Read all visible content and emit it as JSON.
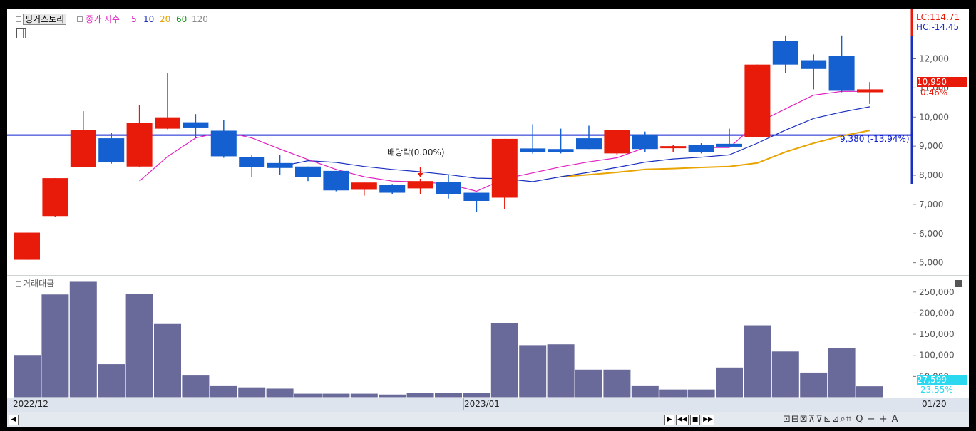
{
  "header": {
    "stock_name": "핑거스토리",
    "ma_prefix": "종가 지수",
    "ma_periods": [
      {
        "label": "5",
        "color": "#e020c0"
      },
      {
        "label": "10",
        "color": "#1a2fbf"
      },
      {
        "label": "20",
        "color": "#e8a400"
      },
      {
        "label": "60",
        "color": "#1a9a1a"
      },
      {
        "label": "120",
        "color": "#888888"
      }
    ],
    "lc_label": "LC:114.71",
    "hc_label": "HC:-14.45"
  },
  "colors": {
    "up": "#e81a0a",
    "down": "#1560d0",
    "volume": "#6a6a9a",
    "hline": "#1020d0",
    "current_price_bg": "#e81a0a",
    "current_volume_bg": "#2ad8f0"
  },
  "price_panel": {
    "current_price": "10,950",
    "current_change": "0.46%",
    "hline_label": "9,380 (-13.94%)",
    "dividend_label": "배당락(0.00%)"
  },
  "volume_panel": {
    "title": "거래대금",
    "current_value": "27,599",
    "current_pct": "23.55%"
  },
  "x_axis": {
    "labels": [
      "2022/12",
      "2023/01",
      "01/20"
    ]
  },
  "toolbar": {
    "scroll_left": "◀",
    "play": "▶",
    "rewind": "◀◀",
    "stop": "■",
    "forward": "▶▶",
    "icons": "⊡⊟⊠⊼⊽⊾⊿⌕⌗ Q − + A"
  },
  "chart_data": [
    {
      "type": "candlestick",
      "ylim": [
        4600,
        13700
      ],
      "yticks": [
        5000,
        6000,
        7000,
        8000,
        9000,
        10000,
        11000,
        12000
      ],
      "ytick_labels": [
        "5,000",
        "6,000",
        "7,000",
        "8,000",
        "9,000",
        "10,000",
        "11,000",
        "12,000"
      ],
      "hline": 9380,
      "candles": [
        {
          "o": 6030,
          "h": 6030,
          "l": 5100,
          "c": 5100,
          "dir": "up"
        },
        {
          "o": 6600,
          "h": 7900,
          "l": 6570,
          "c": 7900,
          "dir": "up"
        },
        {
          "o": 8270,
          "h": 10200,
          "l": 8270,
          "c": 9550,
          "dir": "up"
        },
        {
          "o": 9270,
          "h": 9450,
          "l": 8400,
          "c": 8440,
          "dir": "down"
        },
        {
          "o": 8300,
          "h": 10400,
          "l": 8270,
          "c": 9800,
          "dir": "up"
        },
        {
          "o": 9600,
          "h": 11500,
          "l": 9580,
          "c": 9990,
          "dir": "up"
        },
        {
          "o": 9820,
          "h": 10100,
          "l": 9270,
          "c": 9640,
          "dir": "down"
        },
        {
          "o": 9530,
          "h": 9900,
          "l": 8600,
          "c": 8650,
          "dir": "down"
        },
        {
          "o": 8620,
          "h": 8700,
          "l": 7950,
          "c": 8270,
          "dir": "down"
        },
        {
          "o": 8420,
          "h": 8700,
          "l": 8000,
          "c": 8250,
          "dir": "down"
        },
        {
          "o": 8300,
          "h": 8300,
          "l": 7800,
          "c": 7950,
          "dir": "down"
        },
        {
          "o": 8150,
          "h": 8150,
          "l": 7450,
          "c": 7480,
          "dir": "down"
        },
        {
          "o": 7500,
          "h": 7750,
          "l": 7300,
          "c": 7750,
          "dir": "up"
        },
        {
          "o": 7660,
          "h": 7700,
          "l": 7350,
          "c": 7400,
          "dir": "down"
        },
        {
          "o": 7550,
          "h": 7880,
          "l": 7350,
          "c": 7800,
          "dir": "up"
        },
        {
          "o": 7780,
          "h": 8000,
          "l": 7200,
          "c": 7340,
          "dir": "down"
        },
        {
          "o": 7400,
          "h": 7400,
          "l": 6750,
          "c": 7120,
          "dir": "down"
        },
        {
          "o": 7230,
          "h": 9250,
          "l": 6850,
          "c": 9250,
          "dir": "up"
        },
        {
          "o": 8920,
          "h": 9750,
          "l": 8740,
          "c": 8800,
          "dir": "down"
        },
        {
          "o": 8900,
          "h": 9600,
          "l": 8750,
          "c": 8800,
          "dir": "down"
        },
        {
          "o": 9270,
          "h": 9700,
          "l": 8900,
          "c": 8900,
          "dir": "down"
        },
        {
          "o": 8750,
          "h": 9550,
          "l": 8700,
          "c": 9550,
          "dir": "up"
        },
        {
          "o": 9400,
          "h": 9500,
          "l": 8800,
          "c": 8900,
          "dir": "down"
        },
        {
          "o": 8950,
          "h": 9050,
          "l": 8800,
          "c": 9000,
          "dir": "up"
        },
        {
          "o": 9050,
          "h": 9100,
          "l": 8750,
          "c": 8800,
          "dir": "down"
        },
        {
          "o": 9080,
          "h": 9600,
          "l": 8980,
          "c": 8980,
          "dir": "down"
        },
        {
          "o": 9300,
          "h": 11800,
          "l": 9300,
          "c": 11800,
          "dir": "up"
        },
        {
          "o": 12600,
          "h": 12800,
          "l": 11500,
          "c": 11800,
          "dir": "down"
        },
        {
          "o": 11950,
          "h": 12150,
          "l": 10950,
          "c": 11650,
          "dir": "down"
        },
        {
          "o": 12100,
          "h": 12800,
          "l": 10850,
          "c": 10900,
          "dir": "down"
        },
        {
          "o": 10850,
          "h": 11200,
          "l": 10450,
          "c": 10950,
          "dir": "up"
        }
      ],
      "ma5": [
        null,
        null,
        null,
        null,
        7800,
        8640,
        9280,
        9500,
        9280,
        8900,
        8540,
        8200,
        7950,
        7800,
        7770,
        7700,
        7450,
        7880,
        8080,
        8290,
        8460,
        8600,
        8950,
        8980,
        8950,
        8950,
        9800,
        10280,
        10750,
        10880,
        10880
      ],
      "ma10": [
        null,
        null,
        null,
        null,
        null,
        null,
        null,
        null,
        null,
        8300,
        8500,
        8440,
        8300,
        8200,
        8120,
        8020,
        7900,
        7880,
        7780,
        7950,
        8100,
        8270,
        8450,
        8560,
        8620,
        8700,
        9100,
        9550,
        9950,
        10170,
        10350
      ],
      "ma20": [
        null,
        null,
        null,
        null,
        null,
        null,
        null,
        null,
        null,
        null,
        null,
        null,
        null,
        null,
        null,
        null,
        null,
        null,
        null,
        7950,
        8020,
        8100,
        8200,
        8230,
        8270,
        8300,
        8420,
        8800,
        9100,
        9350,
        9540
      ],
      "dividend_index": 14
    },
    {
      "type": "bar",
      "title": "거래대금",
      "ylim": [
        0,
        280000
      ],
      "yticks": [
        50000,
        100000,
        150000,
        200000,
        250000
      ],
      "ytick_labels": [
        "50,000",
        "100,000",
        "150,000",
        "200,000",
        "250,000"
      ],
      "values": [
        100000,
        245000,
        275000,
        80000,
        247000,
        175000,
        53000,
        28000,
        25000,
        22000,
        10000,
        10000,
        10000,
        8000,
        12000,
        12000,
        12000,
        177000,
        125000,
        127000,
        67000,
        67000,
        28000,
        20000,
        20000,
        72000,
        172000,
        110000,
        60000,
        118000,
        27599
      ]
    }
  ]
}
